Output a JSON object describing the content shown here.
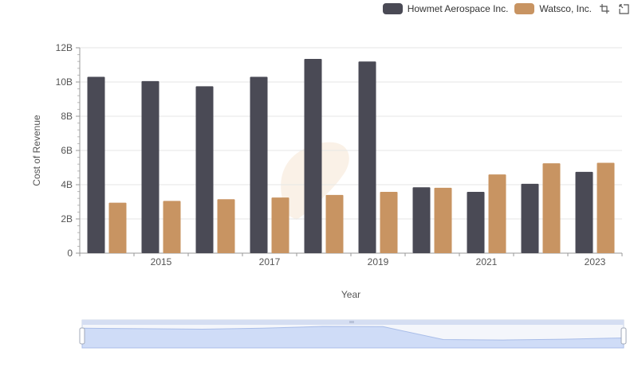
{
  "legend": {
    "items": [
      {
        "label": "Howmet Aerospace Inc.",
        "color": "#4a4a55"
      },
      {
        "label": "Watsco, Inc.",
        "color": "#c89462"
      }
    ]
  },
  "toolbox": {
    "icons": [
      "zoom-icon",
      "zoom-reset-icon"
    ]
  },
  "chart_data": {
    "type": "bar",
    "xlabel": "Year",
    "ylabel": "Cost of Revenue",
    "ylim": [
      0,
      12000000000
    ],
    "yticks": [
      "0",
      "2B",
      "4B",
      "6B",
      "8B",
      "10B",
      "12B"
    ],
    "categories": [
      "2014",
      "2015",
      "2016",
      "2017",
      "2018",
      "2019",
      "2020",
      "2021",
      "2022",
      "2023"
    ],
    "visible_x_labels": [
      "2015",
      "2017",
      "2019",
      "2021",
      "2023"
    ],
    "grid": true,
    "legend_position": "top-right",
    "series": [
      {
        "name": "Howmet Aerospace Inc.",
        "color": "#4a4a55",
        "values": [
          10300000000,
          10050000000,
          9750000000,
          10300000000,
          11350000000,
          11200000000,
          3850000000,
          3580000000,
          4050000000,
          4750000000
        ]
      },
      {
        "name": "Watsco, Inc.",
        "color": "#c89462",
        "values": [
          2950000000,
          3050000000,
          3150000000,
          3250000000,
          3400000000,
          3580000000,
          3820000000,
          4600000000,
          5250000000,
          5280000000
        ]
      }
    ]
  }
}
